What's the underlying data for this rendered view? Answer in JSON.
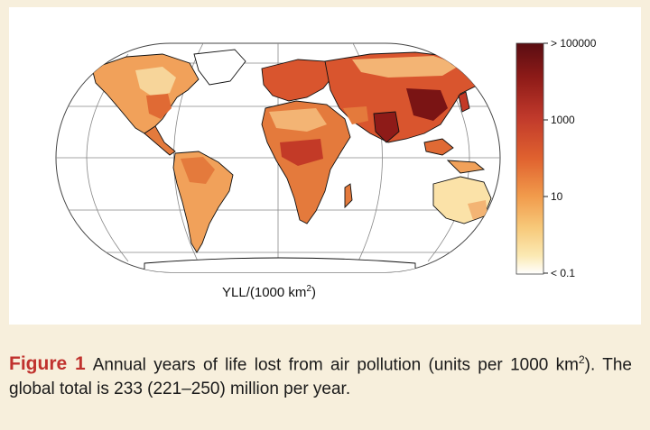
{
  "map": {
    "projection": "Eckert IV",
    "units_label_main": "YLL/(1000 km",
    "units_label_sup": "2",
    "units_label_tail": ")"
  },
  "colorbar": {
    "ticks": [
      "> 100000",
      "1000",
      "10",
      "< 0.1"
    ],
    "colors": [
      "#5a0d12",
      "#8e1b18",
      "#c0392b",
      "#e0622f",
      "#f19a4b",
      "#f7c97a",
      "#fbe9b3",
      "#ffffff"
    ]
  },
  "caption": {
    "label": "Figure 1",
    "text": "Annual years of life lost from air pollution (units per 1000 km",
    "sup": "2",
    "text2": "). The global total is 233 (221–250) million per year."
  },
  "colors": {
    "page_bg": "#f7efdc",
    "accent": "#c0322e"
  }
}
